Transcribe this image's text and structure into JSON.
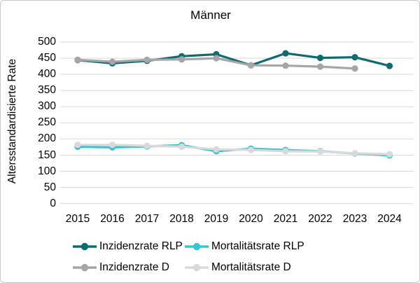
{
  "chart_data": {
    "type": "line",
    "title": "Männer",
    "ylabel": "Altersstandardisierte Rate",
    "xlabel": "",
    "x": [
      2015,
      2016,
      2017,
      2018,
      2019,
      2020,
      2021,
      2022,
      2023,
      2024
    ],
    "ylim": [
      0,
      500
    ],
    "yticks": [
      0,
      50,
      100,
      150,
      200,
      250,
      300,
      350,
      400,
      450,
      500
    ],
    "grid": "horizontal",
    "grid_color": "#d9d9d9",
    "legend_position": "bottom",
    "series": [
      {
        "name": "Inzidenzrate RLP",
        "color": "#0e6b70",
        "values": [
          444,
          434,
          442,
          456,
          462,
          428,
          465,
          451,
          453,
          426
        ]
      },
      {
        "name": "Mortalitätsrate RLP",
        "color": "#38c5d0",
        "values": [
          176,
          174,
          177,
          181,
          162,
          170,
          166,
          162,
          155,
          149
        ]
      },
      {
        "name": "Inzidenzrate D",
        "color": "#a6a6a6",
        "values": [
          445,
          439,
          445,
          446,
          450,
          428,
          427,
          424,
          418,
          null
        ]
      },
      {
        "name": "Mortalitätsrate D",
        "color": "#d9d9d9",
        "values": [
          182,
          182,
          179,
          176,
          168,
          166,
          162,
          161,
          156,
          153
        ]
      }
    ]
  }
}
